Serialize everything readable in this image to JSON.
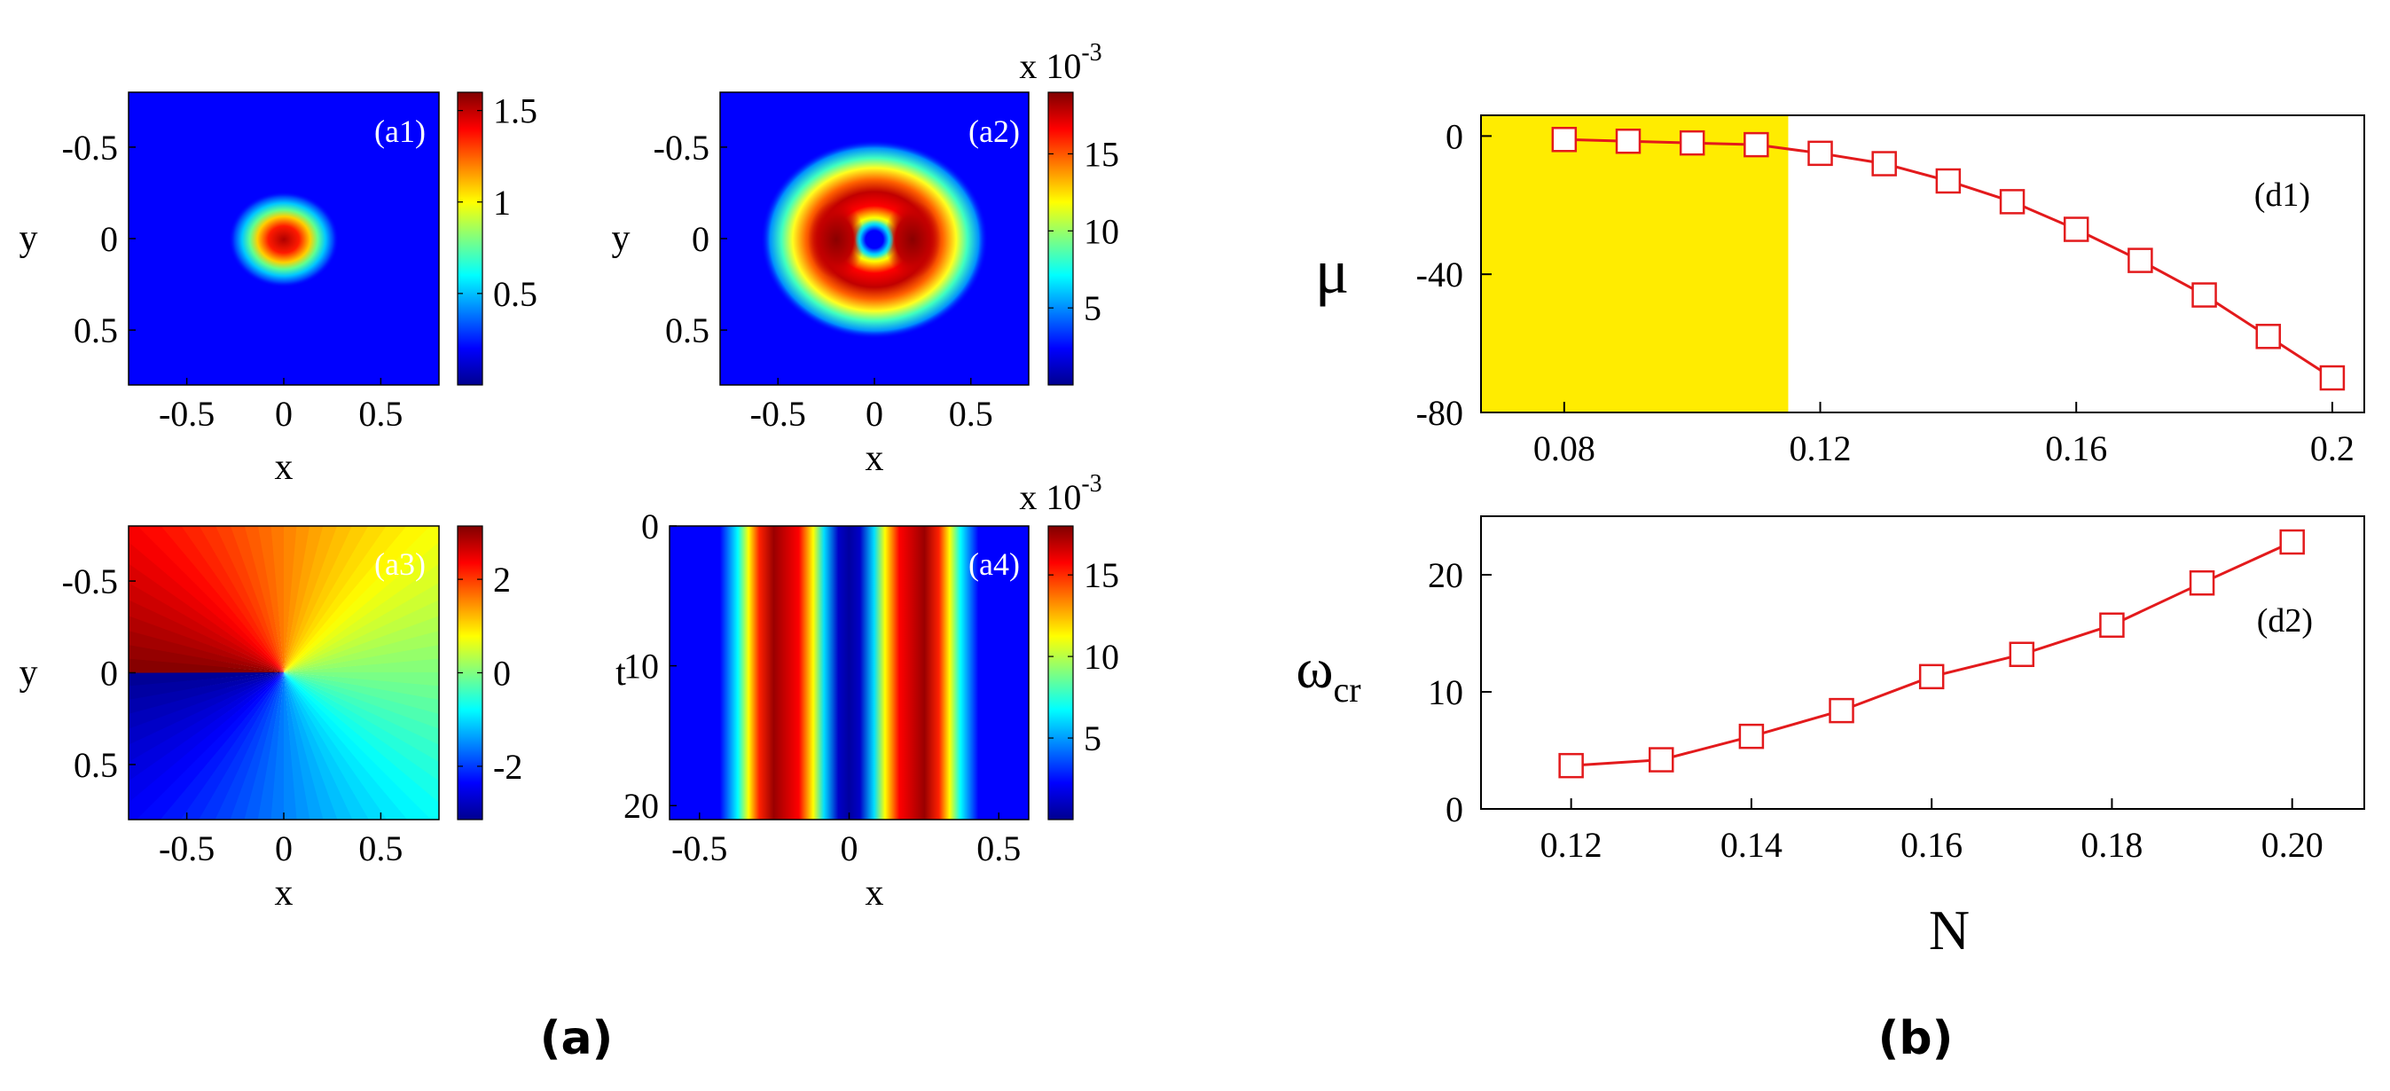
{
  "figure_labels": {
    "left": "(a)",
    "right": "(b)"
  },
  "colors": {
    "series": "#e31a1c",
    "highlight": "#ffec00",
    "axis": "#000000"
  },
  "colormap": "jet",
  "chart_data": [
    {
      "id": "a1",
      "type": "heatmap",
      "panel_label": "(a1)",
      "field": "density |psi|^2 of a single-hump state",
      "xlabel": "x",
      "ylabel": "y",
      "xticks": [
        -0.5,
        0,
        0.5
      ],
      "xtick_labels": [
        "-0.5",
        "0",
        "0.5"
      ],
      "yticks": [
        -0.5,
        0,
        0.5
      ],
      "ytick_labels": [
        "-0.5",
        "0",
        "0.5"
      ],
      "xlim": [
        -0.8,
        0.8
      ],
      "ylim": [
        -0.8,
        0.8
      ],
      "color_range": [
        0,
        1.6
      ],
      "colorbar_ticks": [
        0.5,
        1,
        1.5
      ],
      "colorbar_labels": [
        "0.5",
        "1",
        "1.5"
      ],
      "colorbar_exponent": ""
    },
    {
      "id": "a2",
      "type": "heatmap",
      "panel_label": "(a2)",
      "field": "density of a ring-shaped state with central hole",
      "xlabel": "x",
      "ylabel": "y",
      "xticks": [
        -0.5,
        0,
        0.5
      ],
      "xtick_labels": [
        "-0.5",
        "0",
        "0.5"
      ],
      "yticks": [
        -0.5,
        0,
        0.5
      ],
      "ytick_labels": [
        "-0.5",
        "0",
        "0.5"
      ],
      "xlim": [
        -0.8,
        0.8
      ],
      "ylim": [
        -0.8,
        0.8
      ],
      "color_range": [
        0,
        19
      ],
      "colorbar_ticks": [
        5,
        10,
        15
      ],
      "colorbar_labels": [
        "5",
        "10",
        "15"
      ],
      "colorbar_exponent_base": "x 10",
      "colorbar_exponent": "-3"
    },
    {
      "id": "a3",
      "type": "heatmap",
      "panel_label": "(a3)",
      "field": "phase of the vortex state",
      "xlabel": "x",
      "ylabel": "y",
      "xticks": [
        -0.5,
        0,
        0.5
      ],
      "xtick_labels": [
        "-0.5",
        "0",
        "0.5"
      ],
      "yticks": [
        -0.5,
        0,
        0.5
      ],
      "ytick_labels": [
        "-0.5",
        "0",
        "0.5"
      ],
      "xlim": [
        -0.8,
        0.8
      ],
      "ylim": [
        -0.8,
        0.8
      ],
      "color_range": [
        -3.14,
        3.14
      ],
      "colorbar_ticks": [
        -2,
        0,
        2
      ],
      "colorbar_labels": [
        "-2",
        "0",
        "2"
      ],
      "colorbar_exponent": ""
    },
    {
      "id": "a4",
      "type": "heatmap",
      "panel_label": "(a4)",
      "field": "density cross-section vs time",
      "xlabel": "x",
      "ylabel": "t",
      "xticks": [
        -0.5,
        0,
        0.5
      ],
      "xtick_labels": [
        "-0.5",
        "0",
        "0.5"
      ],
      "yticks": [
        0,
        10,
        20
      ],
      "ytick_labels": [
        "0",
        "10",
        "20"
      ],
      "xlim": [
        -0.6,
        0.6
      ],
      "ylim": [
        0,
        21
      ],
      "color_range": [
        0,
        18
      ],
      "colorbar_ticks": [
        5,
        10,
        15
      ],
      "colorbar_labels": [
        "5",
        "10",
        "15"
      ],
      "colorbar_exponent_base": "x 10",
      "colorbar_exponent": "-3"
    },
    {
      "id": "d1",
      "type": "line",
      "panel_label": "(d1)",
      "ylabel": "μ",
      "xlabel": "",
      "x": [
        0.08,
        0.09,
        0.1,
        0.11,
        0.12,
        0.13,
        0.14,
        0.15,
        0.16,
        0.17,
        0.18,
        0.19,
        0.2
      ],
      "y": [
        -1,
        -1.5,
        -2,
        -2.5,
        -5,
        -8,
        -13,
        -19,
        -27,
        -36,
        -46,
        -58,
        -70
      ],
      "xlim": [
        0.067,
        0.205
      ],
      "ylim": [
        -80,
        6
      ],
      "xticks": [
        0.08,
        0.12,
        0.16,
        0.2
      ],
      "xtick_labels": [
        "0.08",
        "0.12",
        "0.16",
        "0.2"
      ],
      "yticks": [
        0,
        -40,
        -80
      ],
      "ytick_labels": [
        "0",
        "-40",
        "-80"
      ],
      "shaded_region": {
        "x": [
          0.067,
          0.115
        ]
      },
      "marker": "open-square"
    },
    {
      "id": "d2",
      "type": "line",
      "panel_label": "(d2)",
      "ylabel": "ω",
      "ylabel_sub": "cr",
      "xlabel": "N",
      "x": [
        0.12,
        0.13,
        0.14,
        0.15,
        0.16,
        0.17,
        0.18,
        0.19,
        0.2
      ],
      "y": [
        3.7,
        4.2,
        6.2,
        8.4,
        11.3,
        13.2,
        15.7,
        19.3,
        22.8
      ],
      "xlim": [
        0.11,
        0.208
      ],
      "ylim": [
        0,
        25
      ],
      "xticks": [
        0.12,
        0.14,
        0.16,
        0.18,
        0.2
      ],
      "xtick_labels": [
        "0.12",
        "0.14",
        "0.16",
        "0.18",
        "0.20"
      ],
      "yticks": [
        0,
        10,
        20
      ],
      "ytick_labels": [
        "0",
        "10",
        "20"
      ],
      "marker": "open-square"
    }
  ]
}
